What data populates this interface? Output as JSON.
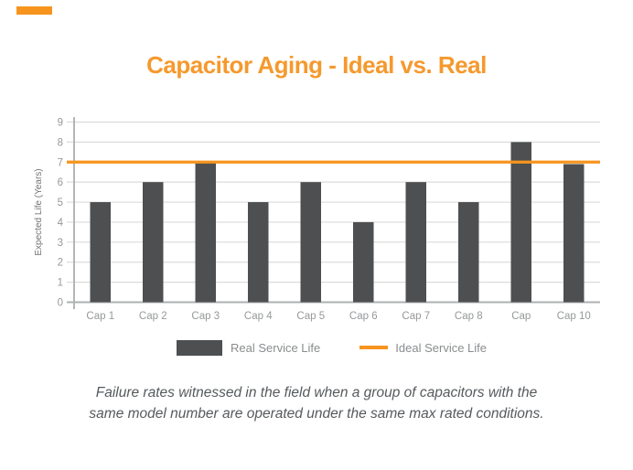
{
  "page": {
    "background": "#FFFFFF",
    "accent_color": "#F7941E"
  },
  "title": {
    "text": "Capacitor Aging - Ideal vs. Real",
    "color": "#F5992D"
  },
  "chart_data": {
    "type": "bar",
    "title": "Capacitor Aging - Ideal vs. Real",
    "categories": [
      "Cap 1",
      "Cap 2",
      "Cap 3",
      "Cap 4",
      "Cap 5",
      "Cap 6",
      "Cap 7",
      "Cap 8",
      "Cap",
      "Cap 10"
    ],
    "series": [
      {
        "name": "Real Service Life",
        "type": "bar",
        "color": "#4D4F50",
        "values": [
          5,
          6,
          7,
          5,
          6,
          4,
          6,
          5,
          8,
          6.9
        ]
      },
      {
        "name": "Ideal Service Life",
        "type": "line",
        "color": "#F7941E",
        "values": [
          7,
          7,
          7,
          7,
          7,
          7,
          7,
          7,
          7,
          7
        ]
      }
    ],
    "xlabel": "",
    "ylabel": "Expected Life (Years)",
    "ylim": [
      0,
      9
    ],
    "yticks": [
      0,
      1,
      2,
      3,
      4,
      5,
      6,
      7,
      8,
      9
    ],
    "grid": true,
    "legend_position": "bottom",
    "gridline_color": "#DBDBDB",
    "axis_color": "#B3B5B7",
    "baseline_color": "#ADB0B2",
    "tick_label_color": "#96989A",
    "axis_title_color": "#737577"
  },
  "legend": {
    "items": [
      {
        "label": "Real Service Life",
        "swatch": "bar",
        "color": "#4D4F50"
      },
      {
        "label": "Ideal Service Life",
        "swatch": "line",
        "color": "#F7941E"
      }
    ]
  },
  "caption": {
    "line1": "Failure rates witnessed in the field when a group of capacitors with the",
    "line2": "same model number are operated under the same max rated conditions."
  }
}
